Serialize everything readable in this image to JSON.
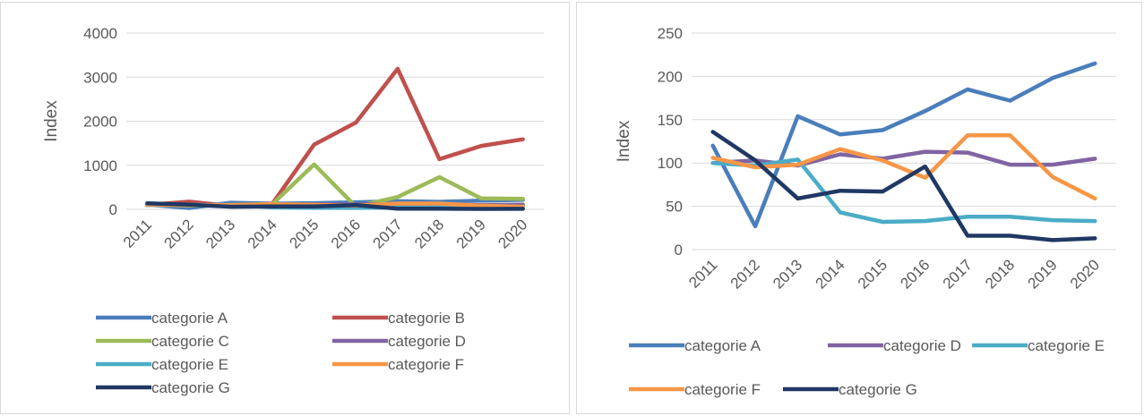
{
  "chart_data": [
    {
      "type": "line",
      "ylabel": "Index",
      "xlabel": "",
      "title": "",
      "ylim": [
        0,
        4000
      ],
      "yticks": [
        0,
        1000,
        2000,
        3000,
        4000
      ],
      "grid": true,
      "legend_placement": "bottom",
      "categories": [
        "2011",
        "2012",
        "2013",
        "2014",
        "2015",
        "2016",
        "2017",
        "2018",
        "2019",
        "2020"
      ],
      "series": [
        {
          "name": "categorie A",
          "color": "#4a7ebb",
          "values": [
            110,
            30,
            150,
            130,
            140,
            160,
            185,
            170,
            200,
            215
          ]
        },
        {
          "name": "categorie B",
          "color": "#c0504d",
          "values": [
            100,
            175,
            80,
            130,
            1470,
            1970,
            3190,
            1140,
            1440,
            1590
          ]
        },
        {
          "name": "categorie C",
          "color": "#9bbb59",
          "values": [
            100,
            90,
            100,
            120,
            1020,
            60,
            280,
            730,
            250,
            240
          ]
        },
        {
          "name": "categorie D",
          "color": "#8064a2",
          "values": [
            100,
            105,
            95,
            110,
            105,
            113,
            112,
            98,
            98,
            105
          ]
        },
        {
          "name": "categorie E",
          "color": "#4bacc6",
          "values": [
            100,
            95,
            105,
            43,
            32,
            33,
            38,
            38,
            34,
            33
          ]
        },
        {
          "name": "categorie F",
          "color": "#f79646",
          "values": [
            105,
            95,
            98,
            116,
            103,
            83,
            132,
            132,
            84,
            59
          ]
        },
        {
          "name": "categorie G",
          "color": "#1f3864",
          "values": [
            136,
            105,
            59,
            68,
            67,
            96,
            16,
            16,
            11,
            13
          ]
        }
      ]
    },
    {
      "type": "line",
      "ylabel": "Index",
      "xlabel": "",
      "title": "",
      "ylim": [
        0,
        250
      ],
      "yticks": [
        0,
        50,
        100,
        150,
        200,
        250
      ],
      "grid": true,
      "legend_placement": "bottom",
      "categories": [
        "2011",
        "2012",
        "2013",
        "2014",
        "2015",
        "2016",
        "2017",
        "2018",
        "2019",
        "2020"
      ],
      "series": [
        {
          "name": "categorie A",
          "color": "#4a7ebb",
          "values": [
            120,
            27,
            154,
            133,
            138,
            160,
            185,
            172,
            198,
            215
          ]
        },
        {
          "name": "categorie D",
          "color": "#8064a2",
          "values": [
            100,
            103,
            97,
            110,
            105,
            113,
            112,
            98,
            98,
            105
          ]
        },
        {
          "name": "categorie E",
          "color": "#4bacc6",
          "values": [
            100,
            97,
            104,
            43,
            32,
            33,
            38,
            38,
            34,
            33
          ]
        },
        {
          "name": "categorie F",
          "color": "#f79646",
          "values": [
            106,
            95,
            98,
            116,
            103,
            83,
            132,
            132,
            84,
            59
          ]
        },
        {
          "name": "categorie G",
          "color": "#1f3864",
          "values": [
            136,
            103,
            59,
            68,
            67,
            96,
            16,
            16,
            11,
            13
          ]
        }
      ]
    }
  ]
}
